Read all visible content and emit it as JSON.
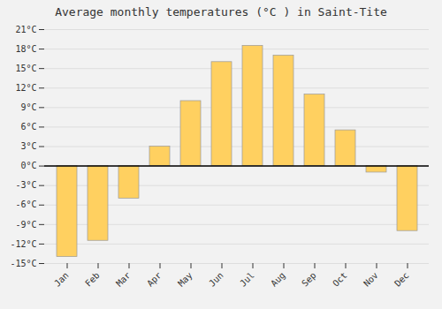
{
  "chart_data": {
    "type": "bar",
    "title": "Average monthly temperatures (°C ) in Saint-Tite",
    "categories": [
      "Jan",
      "Feb",
      "Mar",
      "Apr",
      "May",
      "Jun",
      "Jul",
      "Aug",
      "Sep",
      "Oct",
      "Nov",
      "Dec"
    ],
    "values": [
      -14,
      -11.5,
      -5,
      3,
      10,
      16,
      18.5,
      17,
      11,
      5.5,
      -1,
      -10
    ],
    "color": "#FFD060",
    "ylim": [
      -15,
      21
    ],
    "yticks": [
      {
        "value": -15,
        "label": "-15°C"
      },
      {
        "value": -12,
        "label": "-12°C"
      },
      {
        "value": -9,
        "label": "-9°C"
      },
      {
        "value": -6,
        "label": "-6°C"
      },
      {
        "value": -3,
        "label": "-3°C"
      },
      {
        "value": 0,
        "label": "0°C"
      },
      {
        "value": 3,
        "label": "3°C"
      },
      {
        "value": 6,
        "label": "6°C"
      },
      {
        "value": 9,
        "label": "9°C"
      },
      {
        "value": 12,
        "label": "12°C"
      },
      {
        "value": 15,
        "label": "15°C"
      },
      {
        "value": 18,
        "label": "18°C"
      },
      {
        "value": 21,
        "label": "21°C"
      }
    ],
    "grid": true
  }
}
